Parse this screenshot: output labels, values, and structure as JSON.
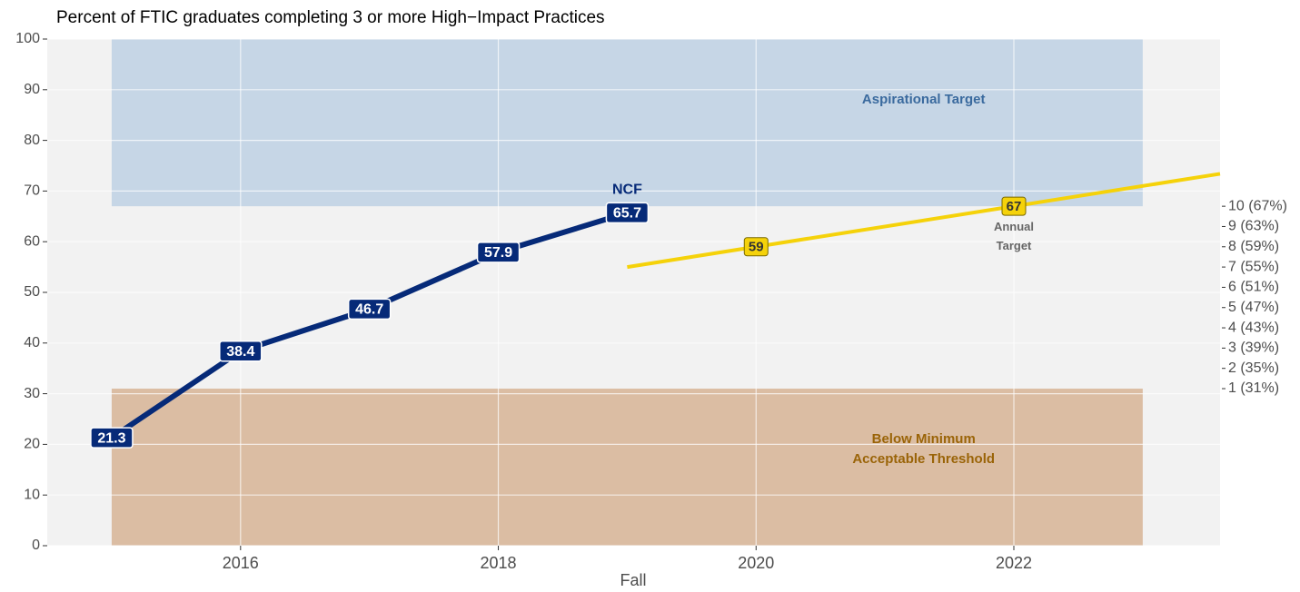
{
  "chart_data": {
    "type": "line",
    "title": "Percent of FTIC graduates completing 3 or more High−Impact Practices",
    "x_label": "Fall",
    "xlim": [
      2014.5,
      2023.6
    ],
    "xticks": [
      2016,
      2018,
      2020,
      2022
    ],
    "ylim": [
      0,
      100
    ],
    "yticks": [
      0,
      10,
      20,
      30,
      40,
      50,
      60,
      70,
      80,
      90,
      100
    ],
    "y2lim": [
      0,
      100
    ],
    "y2ticks": [
      {
        "value": 67,
        "label": "10 (67%)"
      },
      {
        "value": 63,
        "label": "9 (63%)"
      },
      {
        "value": 59,
        "label": "8 (59%)"
      },
      {
        "value": 55,
        "label": "7 (55%)"
      },
      {
        "value": 51,
        "label": "6 (51%)"
      },
      {
        "value": 47,
        "label": "5 (47%)"
      },
      {
        "value": 43,
        "label": "4 (43%)"
      },
      {
        "value": 39,
        "label": "3 (39%)"
      },
      {
        "value": 35,
        "label": "2 (35%)"
      },
      {
        "value": 31,
        "label": "1 (31%)"
      }
    ],
    "grid": true,
    "bands": [
      {
        "name": [
          "Aspirational Target"
        ],
        "xlim": [
          2015,
          2023
        ],
        "ylim": [
          67,
          100
        ],
        "color": "#c6d6e6",
        "text_color": "#3a6a9e",
        "label_x": 2021.3,
        "label_y": 88
      },
      {
        "name": [
          "Below Minimum",
          "Acceptable Threshold"
        ],
        "xlim": [
          2015,
          2023
        ],
        "ylim": [
          0,
          31
        ],
        "color": "#dbbda3",
        "text_color": "#9a6408",
        "label_x": 2021.3,
        "label_y": 19
      }
    ],
    "series": [
      {
        "name": "NCF",
        "color": "#062a78",
        "x": [
          2015,
          2016,
          2017,
          2018,
          2019
        ],
        "values": [
          21.3,
          38.4,
          46.7,
          57.9,
          65.7
        ],
        "labels": true
      },
      {
        "name": "Annual Target",
        "color": "#f5d20a",
        "x": [
          2019,
          2020,
          2022,
          2023.6
        ],
        "values": [
          55,
          59,
          67,
          73.4
        ],
        "labels": false
      }
    ],
    "target_labels": [
      {
        "x": 2020,
        "value": 59
      },
      {
        "x": 2022,
        "value": 67
      }
    ]
  }
}
